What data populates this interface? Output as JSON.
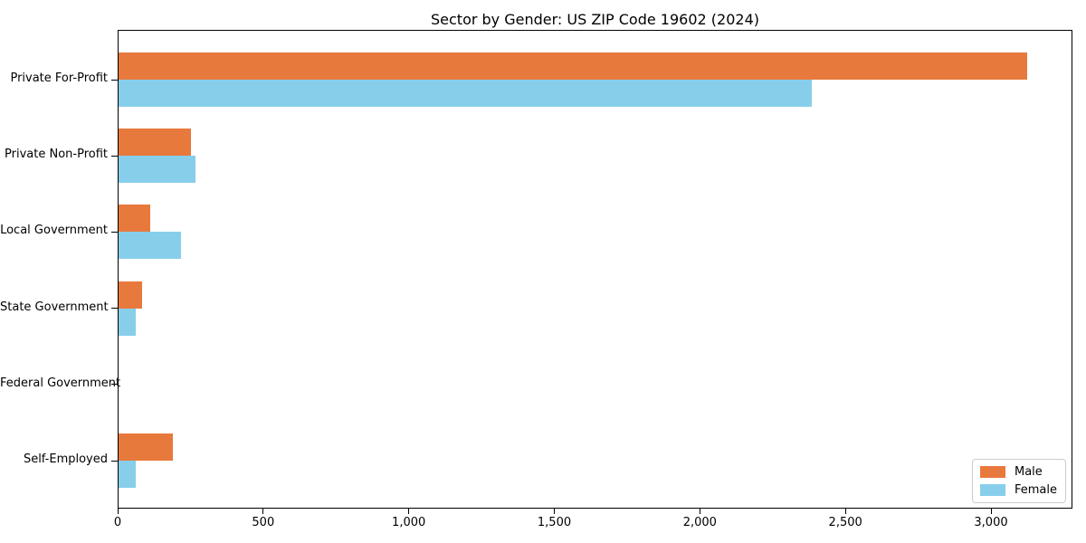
{
  "chart_data": {
    "type": "bar",
    "orientation": "horizontal",
    "title": "Sector by Gender: US ZIP Code 19602 (2024)",
    "xlabel": "",
    "ylabel": "",
    "grid": false,
    "categories": [
      "Private For-Profit",
      "Private Non-Profit",
      "Local Government",
      "State Government",
      "Federal Government",
      "Self-Employed"
    ],
    "series": [
      {
        "name": "Male",
        "color": "#e8793c",
        "values": [
          3120,
          250,
          110,
          80,
          0,
          185
        ]
      },
      {
        "name": "Female",
        "color": "#87ceeb",
        "values": [
          2380,
          265,
          215,
          60,
          0,
          60
        ]
      }
    ],
    "xlim": [
      0,
      3280
    ],
    "x_ticks": [
      0,
      500,
      1000,
      1500,
      2000,
      2500,
      3000
    ],
    "x_tick_labels": [
      "0",
      "500",
      "1,000",
      "1,500",
      "2,000",
      "2,500",
      "3,000"
    ],
    "legend": {
      "position": "lower right",
      "entries": [
        "Male",
        "Female"
      ]
    }
  }
}
